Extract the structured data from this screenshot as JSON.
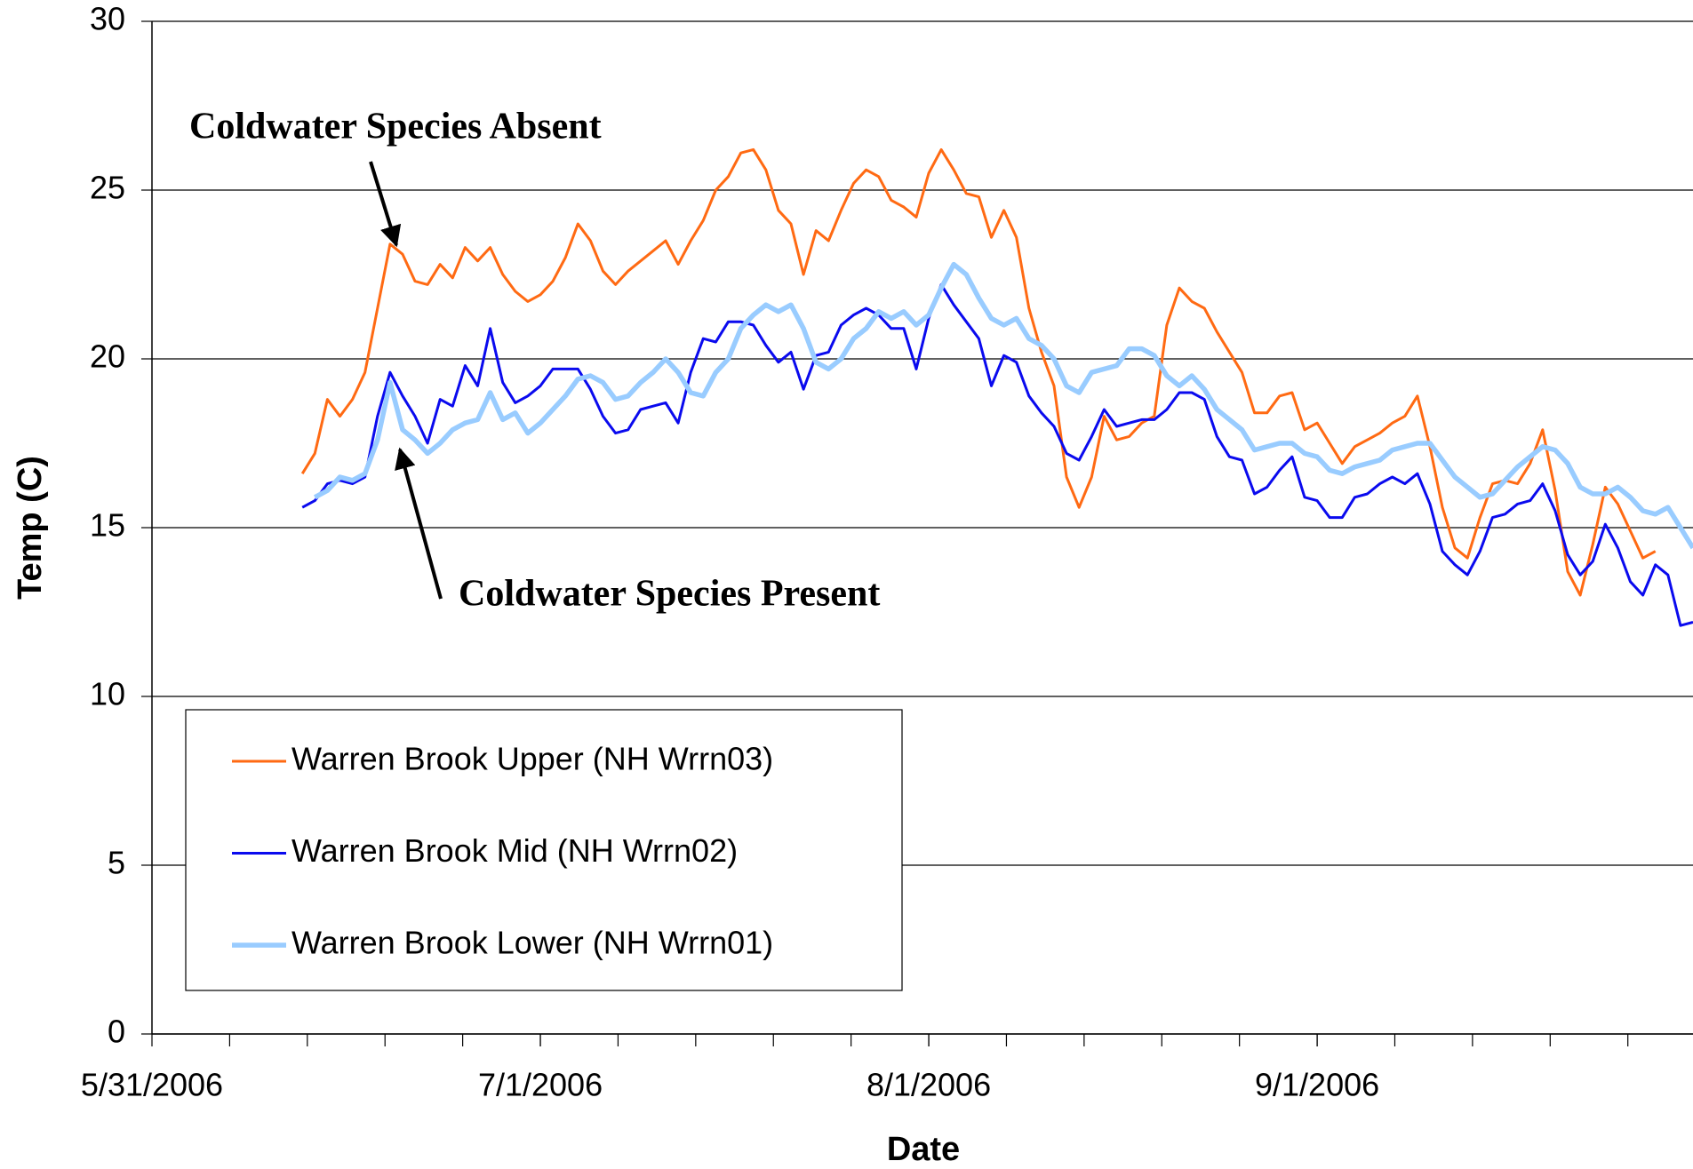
{
  "chart_data": {
    "type": "line",
    "xlabel": "Date",
    "ylabel": "Temp (C)",
    "annotations": [
      "Coldwater Species Absent",
      "Coldwater Species Present"
    ],
    "x": [
      "6/12/2006",
      "6/13/2006",
      "6/14/2006",
      "6/15/2006",
      "6/16/2006",
      "6/17/2006",
      "6/18/2006",
      "6/19/2006",
      "6/20/2006",
      "6/21/2006",
      "6/22/2006",
      "6/23/2006",
      "6/24/2006",
      "6/25/2006",
      "6/26/2006",
      "6/27/2006",
      "6/28/2006",
      "6/29/2006",
      "6/30/2006",
      "7/1/2006",
      "7/2/2006",
      "7/3/2006",
      "7/4/2006",
      "7/5/2006",
      "7/6/2006",
      "7/7/2006",
      "7/8/2006",
      "7/9/2006",
      "7/10/2006",
      "7/11/2006",
      "7/12/2006",
      "7/13/2006",
      "7/14/2006",
      "7/15/2006",
      "7/16/2006",
      "7/17/2006",
      "7/18/2006",
      "7/19/2006",
      "7/20/2006",
      "7/21/2006",
      "7/22/2006",
      "7/23/2006",
      "7/24/2006",
      "7/25/2006",
      "7/26/2006",
      "7/27/2006",
      "7/28/2006",
      "7/29/2006",
      "7/30/2006",
      "7/31/2006",
      "8/1/2006",
      "8/2/2006",
      "8/3/2006",
      "8/4/2006",
      "8/5/2006",
      "8/6/2006",
      "8/7/2006",
      "8/8/2006",
      "8/9/2006",
      "8/10/2006",
      "8/11/2006",
      "8/12/2006",
      "8/13/2006",
      "8/14/2006",
      "8/15/2006",
      "8/16/2006",
      "8/17/2006",
      "8/18/2006",
      "8/19/2006",
      "8/20/2006",
      "8/21/2006",
      "8/22/2006",
      "8/23/2006",
      "8/24/2006",
      "8/25/2006",
      "8/26/2006",
      "8/27/2006",
      "8/28/2006",
      "8/29/2006",
      "8/30/2006",
      "8/31/2006",
      "9/1/2006",
      "9/2/2006",
      "9/3/2006",
      "9/4/2006",
      "9/5/2006",
      "9/6/2006",
      "9/7/2006",
      "9/8/2006",
      "9/9/2006",
      "9/10/2006",
      "9/11/2006",
      "9/12/2006",
      "9/13/2006",
      "9/14/2006",
      "9/15/2006",
      "9/16/2006",
      "9/17/2006",
      "9/18/2006",
      "9/19/2006",
      "9/20/2006",
      "9/21/2006",
      "9/22/2006",
      "9/23/2006",
      "9/24/2006",
      "9/25/2006",
      "9/26/2006",
      "9/27/2006",
      "9/28/2006",
      "9/29/2006",
      "9/30/2006",
      "10/1/2006"
    ],
    "series": [
      {
        "name": "Warren Brook Upper (NH Wrrn03)",
        "color": "#ff6a13",
        "width": 3,
        "values": [
          16.6,
          17.2,
          18.8,
          18.3,
          18.8,
          19.6,
          21.5,
          23.4,
          23.1,
          22.3,
          22.2,
          22.8,
          22.4,
          23.3,
          22.9,
          23.3,
          22.5,
          22.0,
          21.7,
          21.9,
          22.3,
          23.0,
          24.0,
          23.5,
          22.6,
          22.2,
          22.6,
          22.9,
          23.2,
          23.5,
          22.8,
          23.5,
          24.1,
          25.0,
          25.4,
          26.1,
          26.2,
          25.6,
          24.4,
          24.0,
          22.5,
          23.8,
          23.5,
          24.4,
          25.2,
          25.6,
          25.4,
          24.7,
          24.5,
          24.2,
          25.5,
          26.2,
          25.6,
          24.9,
          24.8,
          23.6,
          24.4,
          23.6,
          21.5,
          20.2,
          19.2,
          16.5,
          15.6,
          16.5,
          18.3,
          17.6,
          17.7,
          18.1,
          18.3,
          21.0,
          22.1,
          21.7,
          21.5,
          20.8,
          20.2,
          19.6,
          18.4,
          18.4,
          18.9,
          19.0,
          17.9,
          18.1,
          17.5,
          16.9,
          17.4,
          17.6,
          17.8,
          18.1,
          18.3,
          18.9,
          17.4,
          15.6,
          14.4,
          14.1,
          15.3,
          16.3,
          16.4,
          16.3,
          16.9,
          17.9,
          16.1,
          13.7,
          13.0,
          14.5,
          16.2,
          15.7,
          14.9,
          14.1,
          14.3,
          null,
          null,
          null
        ]
      },
      {
        "name": "Warren Brook Mid (NH Wrrn02)",
        "color": "#0a0aee",
        "width": 3,
        "values": [
          15.6,
          15.8,
          16.3,
          16.4,
          16.3,
          16.5,
          18.3,
          19.6,
          18.9,
          18.3,
          17.5,
          18.8,
          18.6,
          19.8,
          19.2,
          20.9,
          19.3,
          18.7,
          18.9,
          19.2,
          19.7,
          19.7,
          19.7,
          19.1,
          18.3,
          17.8,
          17.9,
          18.5,
          18.6,
          18.7,
          18.1,
          19.6,
          20.6,
          20.5,
          21.1,
          21.1,
          21.0,
          20.4,
          19.9,
          20.2,
          19.1,
          20.1,
          20.2,
          21.0,
          21.3,
          21.5,
          21.3,
          20.9,
          20.9,
          19.7,
          21.2,
          22.2,
          21.6,
          21.1,
          20.6,
          19.2,
          20.1,
          19.9,
          18.9,
          18.4,
          18.0,
          17.2,
          17.0,
          17.7,
          18.5,
          18.0,
          18.1,
          18.2,
          18.2,
          18.5,
          19.0,
          19.0,
          18.8,
          17.7,
          17.1,
          17.0,
          16.0,
          16.2,
          16.7,
          17.1,
          15.9,
          15.8,
          15.3,
          15.3,
          15.9,
          16.0,
          16.3,
          16.5,
          16.3,
          16.6,
          15.7,
          14.3,
          13.9,
          13.6,
          14.3,
          15.3,
          15.4,
          15.7,
          15.8,
          16.3,
          15.5,
          14.2,
          13.6,
          14.0,
          15.1,
          14.4,
          13.4,
          13.0,
          13.9,
          13.6,
          12.1,
          12.2
        ]
      },
      {
        "name": "Warren Brook Lower (NH Wrrn01)",
        "color": "#99ccff",
        "width": 5.5,
        "values": [
          null,
          15.9,
          16.1,
          16.5,
          16.4,
          16.6,
          17.6,
          19.3,
          17.9,
          17.6,
          17.2,
          17.5,
          17.9,
          18.1,
          18.2,
          19.0,
          18.2,
          18.4,
          17.8,
          18.1,
          18.5,
          18.9,
          19.4,
          19.5,
          19.3,
          18.8,
          18.9,
          19.3,
          19.6,
          20.0,
          19.6,
          19.0,
          18.9,
          19.6,
          20.0,
          20.9,
          21.3,
          21.6,
          21.4,
          21.6,
          20.9,
          19.9,
          19.7,
          20.0,
          20.6,
          20.9,
          21.4,
          21.2,
          21.4,
          21.0,
          21.3,
          22.1,
          22.8,
          22.5,
          21.8,
          21.2,
          21.0,
          21.2,
          20.6,
          20.4,
          20.0,
          19.2,
          19.0,
          19.6,
          19.7,
          19.8,
          20.3,
          20.3,
          20.1,
          19.5,
          19.2,
          19.5,
          19.1,
          18.5,
          18.2,
          17.9,
          17.3,
          17.4,
          17.5,
          17.5,
          17.2,
          17.1,
          16.7,
          16.6,
          16.8,
          16.9,
          17.0,
          17.3,
          17.4,
          17.5,
          17.5,
          17.0,
          16.5,
          16.2,
          15.9,
          16.0,
          16.4,
          16.8,
          17.1,
          17.4,
          17.3,
          16.9,
          16.2,
          16.0,
          16.0,
          16.2,
          15.9,
          15.5,
          15.4,
          15.6,
          15.0,
          14.4
        ]
      }
    ],
    "xlim": [
      "5/31/2006",
      "10/1/2006"
    ],
    "xticks": [
      "5/31/2006",
      "7/1/2006",
      "8/1/2006",
      "9/1/2006"
    ],
    "ylim": [
      0,
      30
    ],
    "yticks": [
      0,
      5,
      10,
      15,
      20,
      25,
      30
    ],
    "grid": true,
    "legend": "lower left"
  }
}
